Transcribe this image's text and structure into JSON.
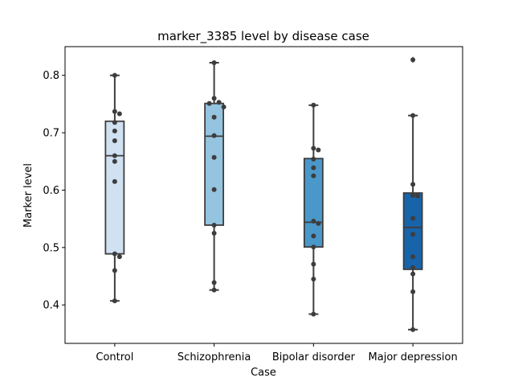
{
  "chart_data": {
    "type": "box",
    "title": "marker_3385 level by disease case",
    "xlabel": "Case",
    "ylabel": "Marker level",
    "ylim": [
      0.333,
      0.85
    ],
    "yticks": [
      0.4,
      0.5,
      0.6,
      0.7,
      0.8
    ],
    "ytick_labels": [
      "0.4",
      "0.5",
      "0.6",
      "0.7",
      "0.8"
    ],
    "grid": false,
    "categories": [
      "Control",
      "Schizophrenia",
      "Bipolar disorder",
      "Major depression"
    ],
    "colors": [
      "#d0e1f2",
      "#94c4df",
      "#4a98c9",
      "#1764ab"
    ],
    "boxes": [
      {
        "whisker_low": 0.407,
        "q1": 0.489,
        "median": 0.66,
        "q3": 0.72,
        "whisker_high": 0.8,
        "outliers": []
      },
      {
        "whisker_low": 0.426,
        "q1": 0.539,
        "median": 0.694,
        "q3": 0.751,
        "whisker_high": 0.822,
        "outliers": []
      },
      {
        "whisker_low": 0.384,
        "q1": 0.501,
        "median": 0.544,
        "q3": 0.655,
        "whisker_high": 0.748,
        "outliers": []
      },
      {
        "whisker_low": 0.357,
        "q1": 0.462,
        "median": 0.535,
        "q3": 0.595,
        "whisker_high": 0.73,
        "outliers": [
          0.827
        ]
      }
    ],
    "points": [
      [
        0.8,
        0.737,
        0.733,
        0.718,
        0.703,
        0.686,
        0.66,
        0.65,
        0.615,
        0.489,
        0.484,
        0.46,
        0.407
      ],
      [
        0.822,
        0.76,
        0.753,
        0.751,
        0.745,
        0.727,
        0.695,
        0.657,
        0.601,
        0.539,
        0.525,
        0.439,
        0.426
      ],
      [
        0.748,
        0.673,
        0.67,
        0.654,
        0.639,
        0.625,
        0.546,
        0.542,
        0.52,
        0.501,
        0.471,
        0.445,
        0.384
      ],
      [
        0.827,
        0.73,
        0.61,
        0.59,
        0.591,
        0.551,
        0.523,
        0.484,
        0.465,
        0.454,
        0.423,
        0.357
      ]
    ]
  }
}
